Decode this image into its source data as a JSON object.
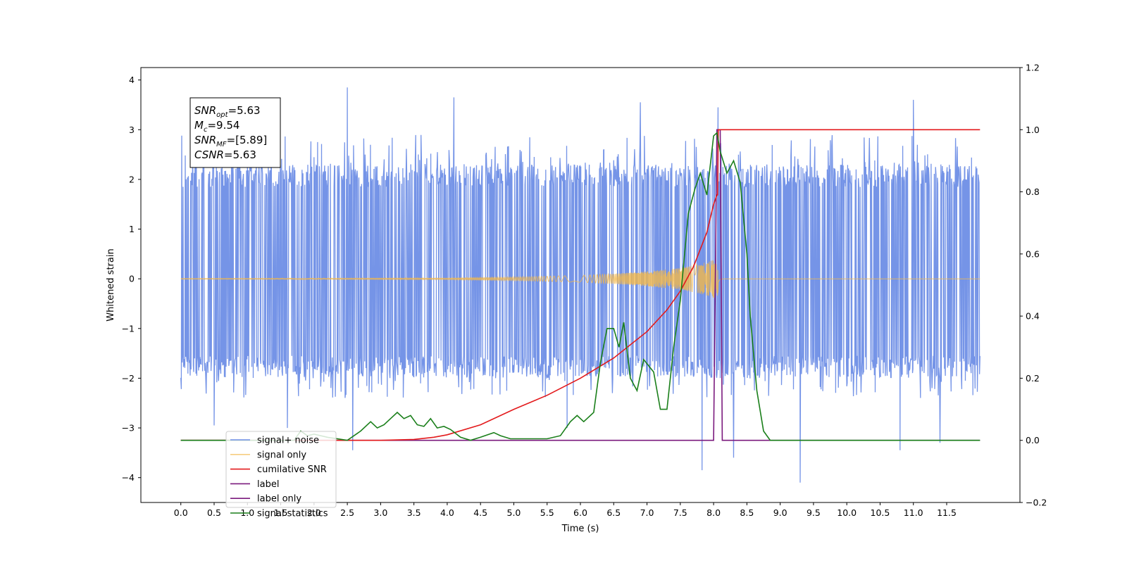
{
  "chart_data": {
    "type": "line",
    "xlabel": "Time (s)",
    "ylabel": "Whitened strain",
    "xlim": [
      -0.6,
      12.6
    ],
    "ylim": [
      -4.5,
      4.25
    ],
    "y2lim": [
      -0.2,
      1.2
    ],
    "x_ticks": [
      0.0,
      0.5,
      1.0,
      1.5,
      2.0,
      2.5,
      3.0,
      3.5,
      4.0,
      4.5,
      5.0,
      5.5,
      6.0,
      6.5,
      7.0,
      7.5,
      8.0,
      8.5,
      9.0,
      9.5,
      10.0,
      10.5,
      11.0,
      11.5
    ],
    "x_tick_labels": [
      "0.0",
      "0.5",
      "1.0",
      "1.5",
      "2.0",
      "2.5",
      "3.0",
      "3.5",
      "4.0",
      "4.5",
      "5.0",
      "5.5",
      "6.0",
      "6.5",
      "7.0",
      "7.5",
      "8.0",
      "8.5",
      "9.0",
      "9.5",
      "10.0",
      "10.5",
      "11.0",
      "11.5"
    ],
    "y_ticks": [
      -4,
      -3,
      -2,
      -1,
      0,
      1,
      2,
      3,
      4
    ],
    "y_tick_labels": [
      "−4",
      "−3",
      "−2",
      "−1",
      "0",
      "1",
      "2",
      "3",
      "4"
    ],
    "y2_ticks": [
      -0.2,
      0.0,
      0.2,
      0.4,
      0.6,
      0.8,
      1.0,
      1.2
    ],
    "y2_tick_labels": [
      "−0.2",
      "0.0",
      "0.2",
      "0.4",
      "0.6",
      "0.8",
      "1.0",
      "1.2"
    ],
    "grid": false,
    "legend_position": "bottom-left",
    "annotation": {
      "lines": [
        {
          "main": "SNR",
          "sub": "opt",
          "rest": "=5.63"
        },
        {
          "main": "M",
          "sub": "c",
          "rest": "=9.54"
        },
        {
          "main": "SNR",
          "sub": "MF",
          "rest": "=[5.89]"
        },
        {
          "main": "CSNR",
          "sub": "",
          "rest": "=5.63"
        }
      ]
    },
    "series": [
      {
        "name": "signal+ noise",
        "axis": "left",
        "color": "#6e8ee6",
        "kind": "noise",
        "x_range": [
          0.0,
          12.0
        ],
        "envelope": [
          -2.0,
          2.3
        ],
        "spikes": [
          [
            2.5,
            3.85
          ],
          [
            4.1,
            3.65
          ],
          [
            8.07,
            3.45
          ],
          [
            6.9,
            3.55
          ],
          [
            10.8,
            3.45
          ],
          [
            11.0,
            3.6
          ],
          [
            0.5,
            -2.95
          ],
          [
            2.58,
            -3.45
          ],
          [
            7.83,
            -3.85
          ],
          [
            8.3,
            -3.6
          ],
          [
            9.3,
            -4.1
          ],
          [
            10.8,
            -3.45
          ],
          [
            11.4,
            -3.3
          ],
          [
            1.6,
            -3.0
          ],
          [
            5.8,
            -3.0
          ]
        ]
      },
      {
        "name": "signal only",
        "axis": "left",
        "color": "#f2b84b",
        "kind": "chirp",
        "x_range": [
          0.0,
          12.0
        ],
        "merger_time": 8.07,
        "x": [
          0.0,
          2.0,
          4.0,
          5.0,
          6.0,
          6.5,
          7.0,
          7.5,
          7.8,
          8.0,
          8.07
        ],
        "amplitude": [
          0.004,
          0.006,
          0.012,
          0.035,
          0.07,
          0.1,
          0.15,
          0.22,
          0.3,
          0.38,
          0.45
        ]
      },
      {
        "name": "cumilative SNR",
        "axis": "right",
        "color": "#e31a1c",
        "x": [
          0.0,
          3.0,
          3.5,
          3.8,
          4.0,
          4.5,
          5.0,
          5.5,
          6.0,
          6.5,
          7.0,
          7.3,
          7.5,
          7.7,
          7.9,
          8.0,
          8.05,
          8.06,
          8.07,
          8.1,
          12.0
        ],
        "values": [
          0.0,
          0.0,
          0.003,
          0.01,
          0.018,
          0.05,
          0.1,
          0.145,
          0.2,
          0.265,
          0.35,
          0.42,
          0.48,
          0.56,
          0.67,
          0.76,
          0.79,
          0.79,
          1.0,
          1.0,
          1.0
        ]
      },
      {
        "name": "label",
        "axis": "right",
        "color": "#7b1a7e",
        "x": [
          0.0,
          8.0,
          8.05,
          8.1,
          8.13,
          12.0
        ],
        "values": [
          0.0,
          0.0,
          1.0,
          1.0,
          0.0,
          0.0
        ]
      },
      {
        "name": "label only",
        "axis": "right",
        "color": "#7b1a7e",
        "hidden_in_plot": true,
        "x": [],
        "values": []
      },
      {
        "name": "signal statistics",
        "axis": "right",
        "color": "#1a7f1a",
        "x": [
          0.0,
          1.7,
          1.8,
          1.9,
          2.0,
          2.2,
          2.5,
          2.7,
          2.85,
          2.95,
          3.05,
          3.15,
          3.25,
          3.35,
          3.45,
          3.55,
          3.65,
          3.75,
          3.85,
          3.95,
          4.05,
          4.2,
          4.35,
          4.5,
          4.7,
          4.8,
          4.95,
          5.1,
          5.3,
          5.5,
          5.7,
          5.85,
          5.95,
          6.05,
          6.2,
          6.3,
          6.4,
          6.5,
          6.58,
          6.65,
          6.75,
          6.85,
          6.95,
          7.1,
          7.2,
          7.3,
          7.4,
          7.5,
          7.62,
          7.72,
          7.8,
          7.9,
          8.0,
          8.05,
          8.1,
          8.2,
          8.3,
          8.4,
          8.5,
          8.55,
          8.65,
          8.75,
          8.85,
          9.0,
          12.0
        ],
        "values": [
          0.0,
          0.0,
          0.03,
          0.015,
          0.02,
          0.01,
          0.0,
          0.03,
          0.06,
          0.04,
          0.05,
          0.07,
          0.09,
          0.07,
          0.08,
          0.05,
          0.045,
          0.07,
          0.04,
          0.045,
          0.035,
          0.01,
          0.0,
          0.01,
          0.025,
          0.015,
          0.005,
          0.005,
          0.005,
          0.005,
          0.015,
          0.06,
          0.08,
          0.06,
          0.09,
          0.25,
          0.36,
          0.36,
          0.3,
          0.38,
          0.2,
          0.16,
          0.26,
          0.22,
          0.1,
          0.1,
          0.3,
          0.45,
          0.73,
          0.81,
          0.86,
          0.79,
          0.98,
          0.99,
          0.93,
          0.86,
          0.9,
          0.83,
          0.6,
          0.4,
          0.16,
          0.03,
          0.0,
          0.0,
          0.0
        ]
      }
    ]
  }
}
